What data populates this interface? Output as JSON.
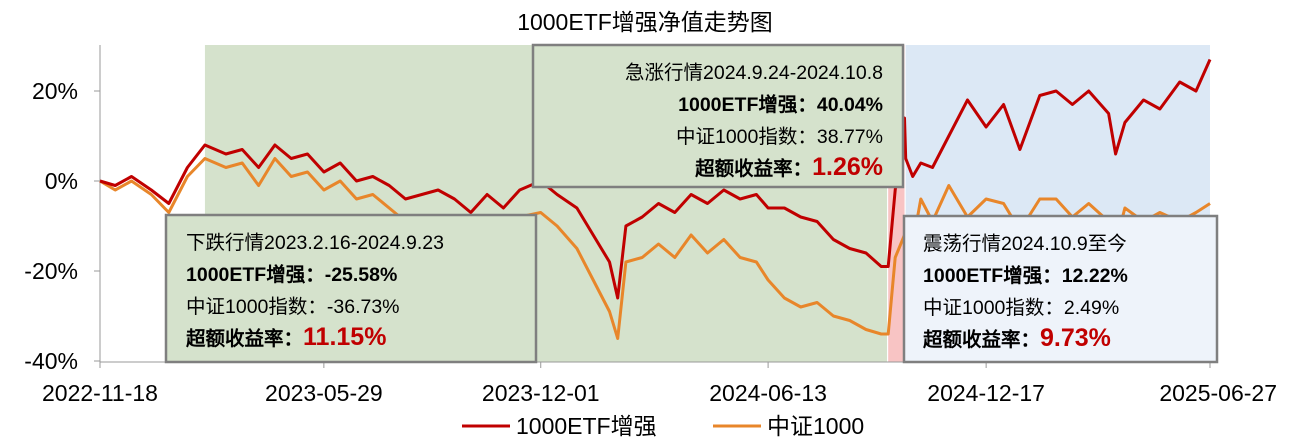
{
  "chart_data": {
    "type": "line",
    "title": "1000ETF增强净值走势图",
    "xlabel": "",
    "ylabel": "",
    "x_ticks": [
      "2022-11-18",
      "2023-05-29",
      "2023-12-01",
      "2024-06-13",
      "2024-12-17",
      "2025-06-27"
    ],
    "x_range": [
      "2022-11-18",
      "2025-06-27"
    ],
    "y_ticks": [
      "20%",
      "0%",
      "-20%",
      "-40%"
    ],
    "ylim": [
      -40,
      30
    ],
    "grid": false,
    "legend_position": "bottom",
    "colors": {
      "etf": "#C00000",
      "index": "#E8862A",
      "phase1": "#D5E2CC",
      "phase2": "#F8C4C4",
      "phase3": "#DCE8F5"
    },
    "series": [
      {
        "name": "1000ETF增强",
        "x": [
          "2022-11-18",
          "2022-12-01",
          "2022-12-15",
          "2023-01-01",
          "2023-01-16",
          "2023-02-01",
          "2023-02-16",
          "2023-03-06",
          "2023-03-20",
          "2023-04-03",
          "2023-04-17",
          "2023-05-01",
          "2023-05-15",
          "2023-05-29",
          "2023-06-12",
          "2023-06-26",
          "2023-07-10",
          "2023-07-24",
          "2023-08-07",
          "2023-08-21",
          "2023-09-04",
          "2023-09-18",
          "2023-10-02",
          "2023-10-16",
          "2023-10-30",
          "2023-11-13",
          "2023-12-01",
          "2023-12-15",
          "2024-01-01",
          "2024-01-15",
          "2024-01-29",
          "2024-02-05",
          "2024-02-12",
          "2024-02-26",
          "2024-03-11",
          "2024-03-25",
          "2024-04-08",
          "2024-04-22",
          "2024-05-06",
          "2024-05-20",
          "2024-06-03",
          "2024-06-13",
          "2024-06-27",
          "2024-07-11",
          "2024-07-25",
          "2024-08-08",
          "2024-08-22",
          "2024-09-05",
          "2024-09-18",
          "2024-09-24",
          "2024-09-30",
          "2024-10-08",
          "2024-10-09",
          "2024-10-15",
          "2024-10-22",
          "2024-11-01",
          "2024-11-15",
          "2024-12-01",
          "2024-12-17",
          "2025-01-01",
          "2025-01-15",
          "2025-02-01",
          "2025-02-15",
          "2025-03-01",
          "2025-03-15",
          "2025-04-01",
          "2025-04-07",
          "2025-04-15",
          "2025-05-01",
          "2025-05-15",
          "2025-06-01",
          "2025-06-15",
          "2025-06-27"
        ],
        "values": [
          0,
          -1,
          1,
          -2,
          -5,
          3,
          8,
          6,
          7,
          3,
          8,
          5,
          6,
          2,
          4,
          0,
          1,
          -1,
          -4,
          -3,
          -2,
          -4,
          -7,
          -3,
          -6,
          -2,
          0,
          -3,
          -6,
          -12,
          -18,
          -26,
          -10,
          -8,
          -5,
          -7,
          -3,
          -5,
          -2,
          -4,
          -3,
          -6,
          -6,
          -8,
          -9,
          -13,
          -15,
          -16,
          -19,
          -19,
          -2,
          14,
          5,
          1,
          4,
          3,
          10,
          18,
          12,
          17,
          7,
          19,
          20,
          17,
          20,
          15,
          6,
          13,
          18,
          16,
          22,
          20,
          27
        ]
      },
      {
        "name": "中证1000",
        "x": [
          "2022-11-18",
          "2022-12-01",
          "2022-12-15",
          "2023-01-01",
          "2023-01-16",
          "2023-02-01",
          "2023-02-16",
          "2023-03-06",
          "2023-03-20",
          "2023-04-03",
          "2023-04-17",
          "2023-05-01",
          "2023-05-15",
          "2023-05-29",
          "2023-06-12",
          "2023-06-26",
          "2023-07-10",
          "2023-07-24",
          "2023-08-07",
          "2023-08-21",
          "2023-09-04",
          "2023-09-18",
          "2023-10-02",
          "2023-10-16",
          "2023-10-30",
          "2023-11-13",
          "2023-12-01",
          "2023-12-15",
          "2024-01-01",
          "2024-01-15",
          "2024-01-29",
          "2024-02-05",
          "2024-02-12",
          "2024-02-26",
          "2024-03-11",
          "2024-03-25",
          "2024-04-08",
          "2024-04-22",
          "2024-05-06",
          "2024-05-20",
          "2024-06-03",
          "2024-06-13",
          "2024-06-27",
          "2024-07-11",
          "2024-07-25",
          "2024-08-08",
          "2024-08-22",
          "2024-09-05",
          "2024-09-18",
          "2024-09-24",
          "2024-09-30",
          "2024-10-08",
          "2024-10-09",
          "2024-10-15",
          "2024-10-22",
          "2024-11-01",
          "2024-11-15",
          "2024-12-01",
          "2024-12-17",
          "2025-01-01",
          "2025-01-15",
          "2025-02-01",
          "2025-02-15",
          "2025-03-01",
          "2025-03-15",
          "2025-04-01",
          "2025-04-07",
          "2025-04-15",
          "2025-05-01",
          "2025-05-15",
          "2025-06-01",
          "2025-06-15",
          "2025-06-27"
        ],
        "values": [
          0,
          -2,
          0,
          -3,
          -7,
          1,
          5,
          3,
          4,
          -1,
          5,
          1,
          2,
          -2,
          0,
          -4,
          -3,
          -6,
          -9,
          -8,
          -9,
          -11,
          -14,
          -9,
          -12,
          -8,
          -7,
          -10,
          -15,
          -22,
          -29,
          -35,
          -18,
          -17,
          -14,
          -17,
          -12,
          -16,
          -13,
          -17,
          -18,
          -22,
          -26,
          -28,
          -27,
          -30,
          -31,
          -33,
          -34,
          -34,
          -17,
          -12,
          -18,
          -14,
          -4,
          -9,
          -1,
          -8,
          -4,
          -5,
          -11,
          -4,
          -4,
          -8,
          -5,
          -9,
          -14,
          -6,
          -9,
          -7,
          -9,
          -7,
          -5
        ]
      }
    ],
    "shaded_periods": [
      {
        "start": "2023-02-16",
        "end": "2024-09-23"
      },
      {
        "start": "2024-09-24",
        "end": "2024-10-08"
      },
      {
        "start": "2024-10-09",
        "end": "2025-06-27"
      }
    ],
    "annotations": [
      {
        "title": "下跌行情2023.2.16-2024.9.23",
        "line1": "1000ETF增强：-25.58%",
        "line2": "中证1000指数：-36.73%",
        "excess_label": "超额收益率：",
        "excess_value": "11.15%"
      },
      {
        "title": "急涨行情2024.9.24-2024.10.8",
        "line1": "1000ETF增强：40.04%",
        "line2": "中证1000指数：38.77%",
        "excess_label": "超额收益率：",
        "excess_value": "1.26%"
      },
      {
        "title": "震荡行情2024.10.9至今",
        "line1": "1000ETF增强：12.22%",
        "line2": "中证1000指数：2.49%",
        "excess_label": "超额收益率：",
        "excess_value": "9.73%"
      }
    ]
  }
}
